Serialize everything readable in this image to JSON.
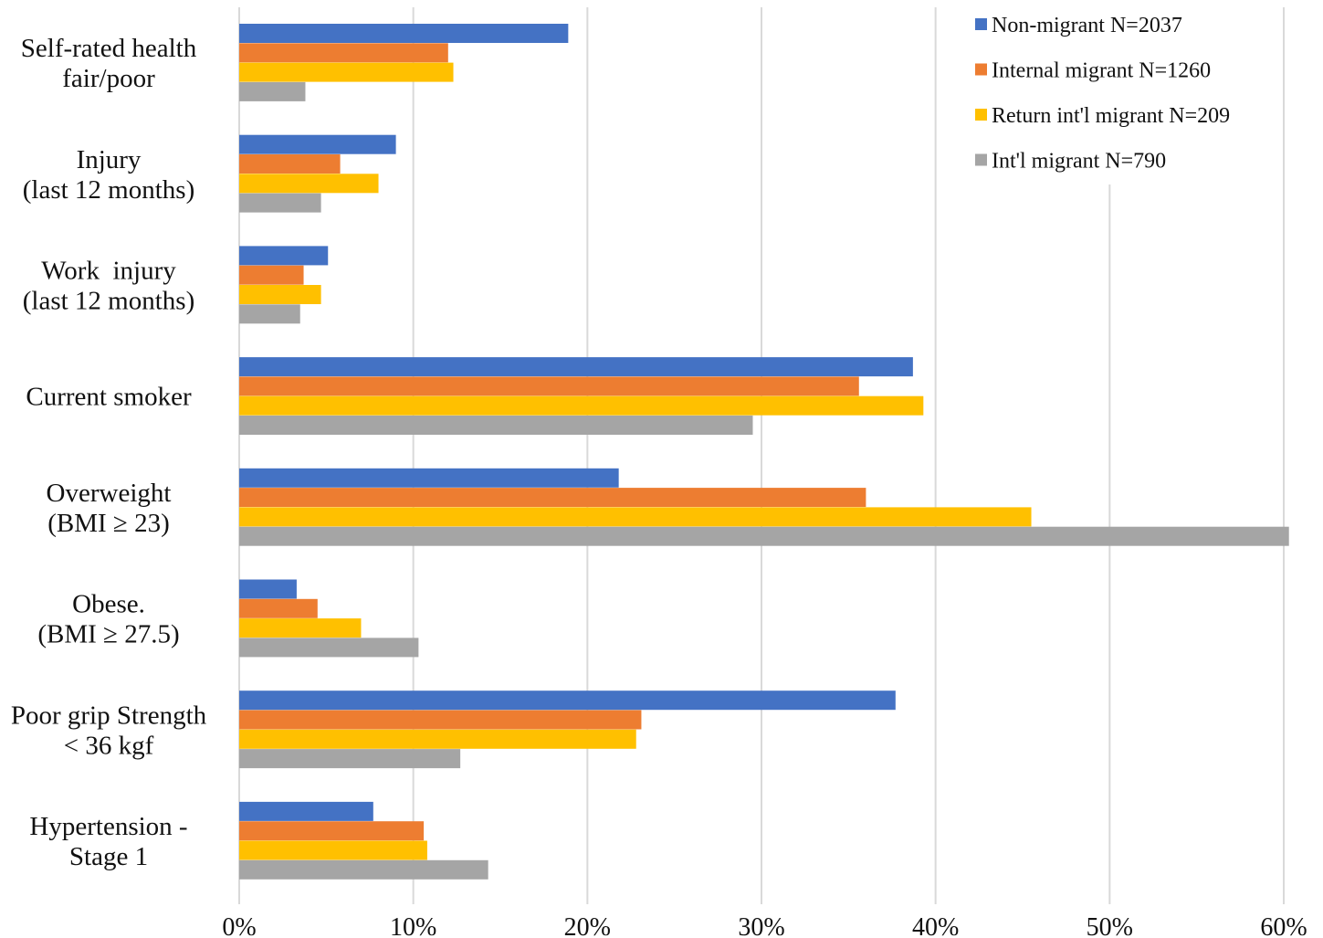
{
  "chart_data": {
    "type": "bar",
    "orientation": "horizontal",
    "title": "",
    "xlabel": "",
    "ylabel": "",
    "xlim": [
      0,
      60
    ],
    "x_ticks": [
      "0%",
      "10%",
      "20%",
      "30%",
      "40%",
      "50%",
      "60%"
    ],
    "grid": true,
    "legend_position": "top-right",
    "categories": [
      [
        "Self-rated health",
        "fair/poor"
      ],
      [
        "Injury",
        "(last 12 months)"
      ],
      [
        "Work  injury",
        "(last 12 months)"
      ],
      [
        "Current smoker"
      ],
      [
        "Overweight",
        "(BMI ≥ 23)"
      ],
      [
        "Obese.",
        "(BMI ≥ 27.5)"
      ],
      [
        "Poor grip Strength",
        "< 36 kgf"
      ],
      [
        "Hypertension -",
        "Stage 1"
      ]
    ],
    "series": [
      {
        "name": "Non-migrant N=2037",
        "color": "#4472C4",
        "values": [
          18.9,
          9.0,
          5.1,
          38.7,
          21.8,
          3.3,
          37.7,
          7.7
        ]
      },
      {
        "name": "Internal migrant N=1260",
        "color": "#ED7D31",
        "values": [
          12.0,
          5.8,
          3.7,
          35.6,
          36.0,
          4.5,
          23.1,
          10.6
        ]
      },
      {
        "name": "Return int'l migrant N=209",
        "color": "#FFC000",
        "values": [
          12.3,
          8.0,
          4.7,
          39.3,
          45.5,
          7.0,
          22.8,
          10.8
        ]
      },
      {
        "name": "Int'l migrant N=790",
        "color": "#A5A5A5",
        "values": [
          3.8,
          4.7,
          3.5,
          29.5,
          60.3,
          10.3,
          12.7,
          14.3
        ]
      }
    ]
  }
}
